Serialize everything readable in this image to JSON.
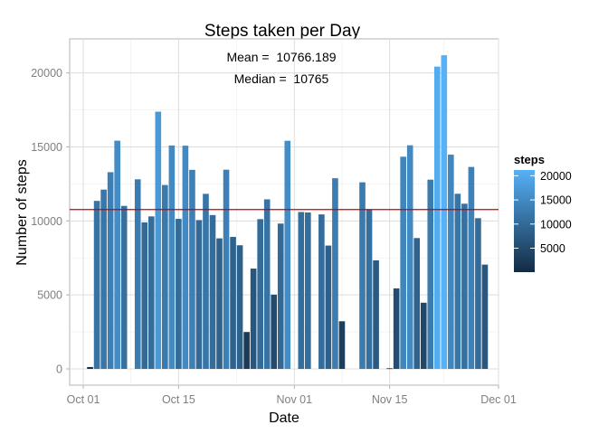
{
  "chart_data": {
    "type": "bar",
    "title": "Steps taken per Day",
    "xlabel": "Date",
    "ylabel": "Number of steps",
    "annotations": {
      "mean_text": "Mean =  10766.189",
      "median_text": "Median =  10765"
    },
    "reference_line": {
      "y": 10766.189,
      "color": "#cc0000"
    },
    "x_range": [
      "2012-09-29",
      "2012-12-01"
    ],
    "ylim": [
      -1100,
      22300
    ],
    "x_ticks": [
      {
        "date": "2012-10-01",
        "label": "Oct 01"
      },
      {
        "date": "2012-10-15",
        "label": "Oct 15"
      },
      {
        "date": "2012-11-01",
        "label": "Nov 01"
      },
      {
        "date": "2012-11-15",
        "label": "Nov 15"
      },
      {
        "date": "2012-12-01",
        "label": "Dec 01"
      }
    ],
    "y_ticks": [
      0,
      5000,
      10000,
      15000,
      20000
    ],
    "y_tick_labels": [
      "0",
      "5000",
      "10000",
      "15000",
      "20000"
    ],
    "grid": true,
    "legend": {
      "title": "steps",
      "position": "right",
      "ticks": [
        5000,
        10000,
        15000,
        20000
      ],
      "tick_labels": [
        "5000",
        "10000",
        "15000",
        "20000"
      ],
      "range": [
        41,
        21194
      ],
      "low_color": "#132b43",
      "high_color": "#56b1f7"
    },
    "x": [
      "2012-10-02",
      "2012-10-03",
      "2012-10-04",
      "2012-10-05",
      "2012-10-06",
      "2012-10-07",
      "2012-10-09",
      "2012-10-10",
      "2012-10-11",
      "2012-10-12",
      "2012-10-13",
      "2012-10-14",
      "2012-10-15",
      "2012-10-16",
      "2012-10-17",
      "2012-10-18",
      "2012-10-19",
      "2012-10-20",
      "2012-10-21",
      "2012-10-22",
      "2012-10-23",
      "2012-10-24",
      "2012-10-25",
      "2012-10-26",
      "2012-10-27",
      "2012-10-28",
      "2012-10-29",
      "2012-10-30",
      "2012-10-31",
      "2012-11-02",
      "2012-11-03",
      "2012-11-05",
      "2012-11-06",
      "2012-11-07",
      "2012-11-08",
      "2012-11-11",
      "2012-11-12",
      "2012-11-13",
      "2012-11-15",
      "2012-11-16",
      "2012-11-17",
      "2012-11-18",
      "2012-11-19",
      "2012-11-20",
      "2012-11-21",
      "2012-11-22",
      "2012-11-23",
      "2012-11-24",
      "2012-11-25",
      "2012-11-26",
      "2012-11-27",
      "2012-11-28",
      "2012-11-29"
    ],
    "values": [
      126,
      11352,
      12116,
      13294,
      15420,
      11015,
      12811,
      9900,
      10304,
      17382,
      12426,
      15098,
      10139,
      15084,
      13452,
      10056,
      11829,
      10395,
      8821,
      13460,
      8918,
      8355,
      2492,
      6778,
      10119,
      11458,
      5018,
      9819,
      15414,
      10600,
      10571,
      10439,
      8334,
      12883,
      3219,
      12608,
      10765,
      7336,
      41,
      5441,
      14339,
      15110,
      8841,
      4472,
      12787,
      20427,
      21194,
      14478,
      11834,
      11162,
      13646,
      10183,
      7047
    ]
  }
}
